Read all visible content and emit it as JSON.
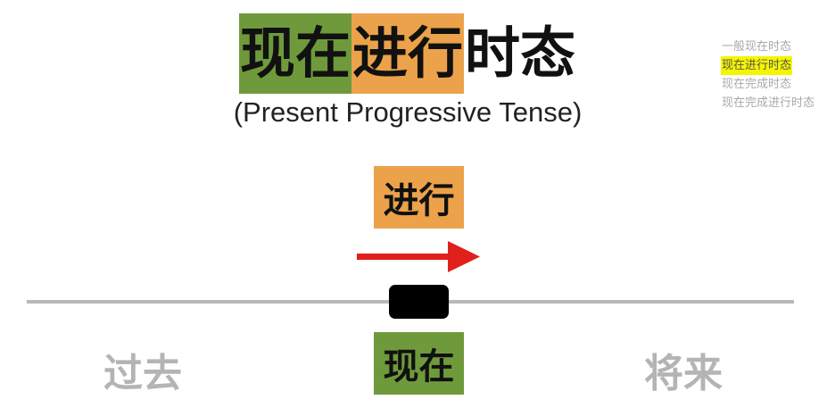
{
  "colors": {
    "green": "#6f9a3b",
    "orange": "#eca24a",
    "highlight": "#f5f500",
    "arrow": "#e0201a"
  },
  "title": {
    "part_green": "现在",
    "part_orange": "进行",
    "part_plain": "时态"
  },
  "subtitle": "(Present Progressive Tense)",
  "menu": {
    "items": [
      {
        "label": "一般现在时态",
        "active": false
      },
      {
        "label": "现在进行时态",
        "active": true
      },
      {
        "label": "现在完成时态",
        "active": false
      },
      {
        "label": "现在完成进行时态",
        "active": false
      }
    ]
  },
  "diagram": {
    "progressive_label": "进行",
    "now_label": "现在",
    "past_label": "过去",
    "future_label": "将来",
    "arrow_icon": "right-arrow-icon"
  }
}
